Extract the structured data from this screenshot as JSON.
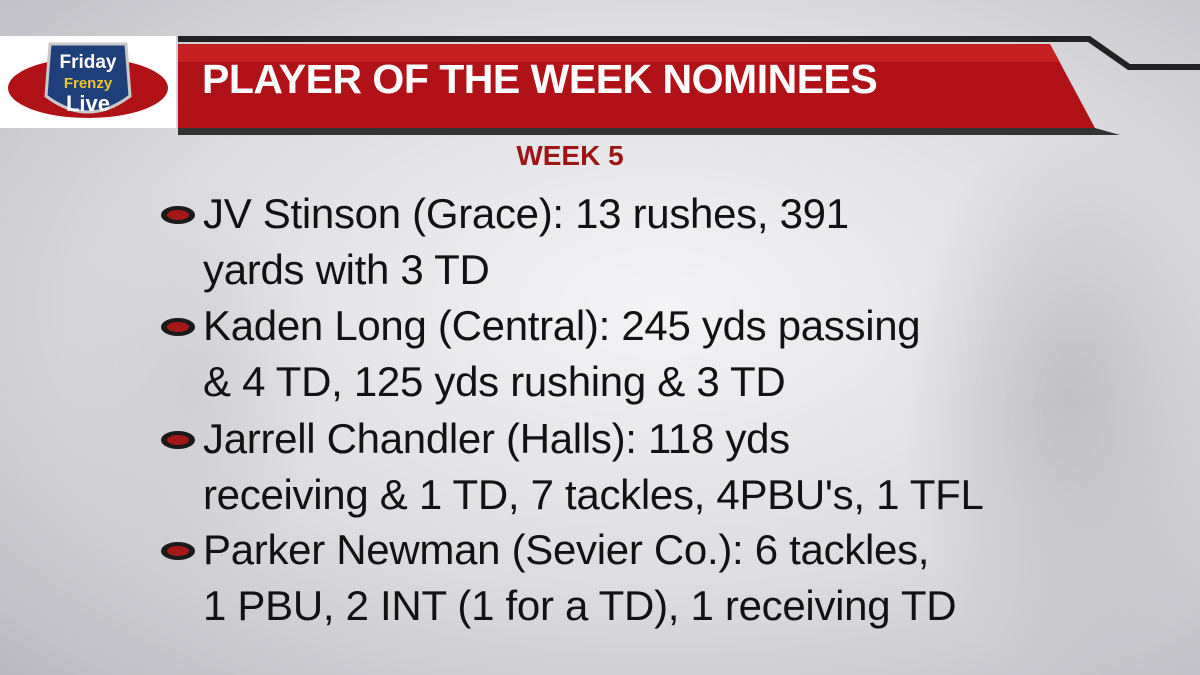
{
  "logo": {
    "line1": "Friday",
    "line2": "Frenzy",
    "line3": "Live"
  },
  "header": {
    "title": "PLAYER OF THE WEEK NOMINEES",
    "subtitle": "WEEK 5"
  },
  "items": [
    {
      "lines": [
        "JV Stinson (Grace): 13 rushes, 391",
        "yards with 3 TD"
      ]
    },
    {
      "lines": [
        "Kaden Long (Central): 245 yds passing",
        "& 4 TD, 125 yds rushing & 3 TD"
      ]
    },
    {
      "lines": [
        "Jarrell Chandler (Halls): 118 yds",
        "receiving & 1 TD, 7 tackles, 4PBU's, 1 TFL"
      ]
    },
    {
      "lines": [
        "Parker Newman (Sevier Co.): 6 tackles,",
        "1 PBU, 2 INT (1 for a TD), 1 receiving TD"
      ]
    }
  ]
}
